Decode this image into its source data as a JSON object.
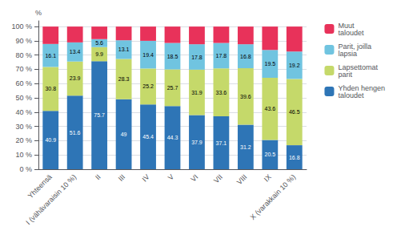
{
  "chart_data": {
    "type": "bar",
    "stacked": true,
    "categories": [
      "Yhteensä",
      "I (vähävaraisin 10 %)",
      "II",
      "III",
      "IV",
      "V",
      "VI",
      "VII",
      "VIII",
      "IX",
      "X (varakkain 10 %)"
    ],
    "series": [
      {
        "name": "Yhden hengen\ntaloudet",
        "color": "#2E75B6",
        "data_labels": true,
        "values": [
          40.9,
          51.6,
          75.7,
          49.0,
          45.4,
          44.3,
          37.9,
          37.1,
          31.2,
          20.5,
          16.8
        ]
      },
      {
        "name": "Lapsettomat\nparit",
        "color": "#C5D96A",
        "data_labels": true,
        "values": [
          30.8,
          23.9,
          9.9,
          28.3,
          25.2,
          25.7,
          31.9,
          33.6,
          39.6,
          43.6,
          46.5
        ]
      },
      {
        "name": "Parit, joilla\nlapsia",
        "color": "#70C4E0",
        "data_labels": true,
        "values": [
          16.1,
          13.4,
          5.6,
          13.1,
          19.4,
          18.5,
          17.8,
          17.8,
          16.8,
          19.5,
          19.2
        ]
      },
      {
        "name": "Muut\ntaloudet",
        "color": "#E8325A",
        "data_labels": false,
        "values": [
          12.2,
          11.1,
          8.8,
          9.6,
          10.0,
          11.5,
          12.4,
          11.5,
          12.4,
          16.4,
          17.5
        ]
      }
    ],
    "ylabel": "%",
    "ylim": [
      0,
      104
    ],
    "yticks": [
      {
        "value": 0,
        "label": "0 %"
      },
      {
        "value": 10,
        "label": "10 %"
      },
      {
        "value": 20,
        "label": "20 %"
      },
      {
        "value": 30,
        "label": "30 %"
      },
      {
        "value": 40,
        "label": "40 %"
      },
      {
        "value": 50,
        "label": "50 %"
      },
      {
        "value": 60,
        "label": "60 %"
      },
      {
        "value": 70,
        "label": "70 %"
      },
      {
        "value": 80,
        "label": "80 %"
      },
      {
        "value": 90,
        "label": "90 %"
      },
      {
        "value": 100,
        "label": "100 %"
      }
    ],
    "grid": true,
    "legend": "right"
  }
}
